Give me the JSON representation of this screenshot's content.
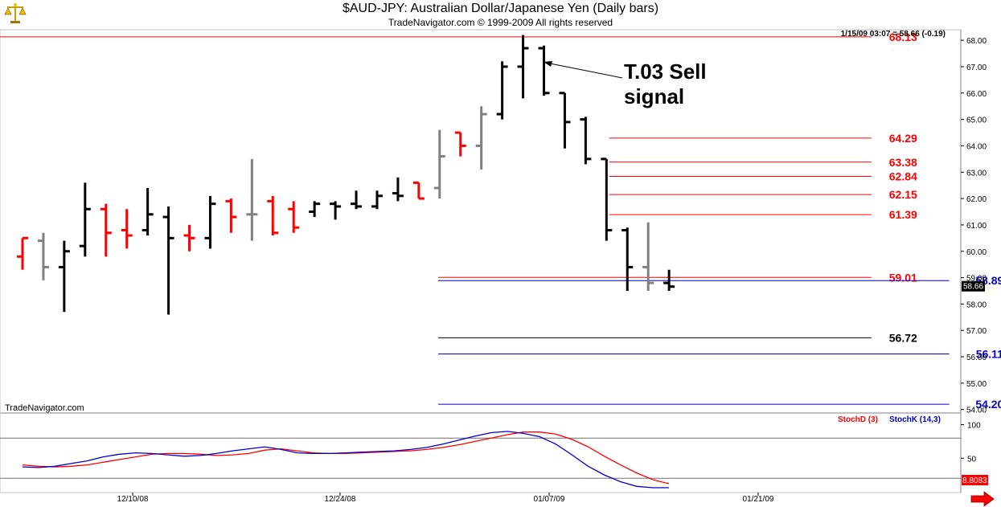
{
  "header": {
    "title": "$AUD-JPY:  Australian Dollar/Japanese Yen  (Daily bars)",
    "subtitle": "TradeNavigator.com © 1999-2009 All rights reserved",
    "quote_readout": "1/15/09 03:07 = 58.66 (-0.19)",
    "watermark": "TradeNavigator.com",
    "logo_icon": "gold-scale-logo-icon"
  },
  "colors": {
    "up_bar": "#000000",
    "down_bar": "#ff0000",
    "neutral_bar": "#808080",
    "level_red": "#ff0000",
    "level_blue": "#0000cc",
    "stoch_d": "#ff0000",
    "stoch_k": "#0000cc"
  },
  "annotation": {
    "line1": "T.03 Sell",
    "line2": "signal"
  },
  "chart_data": [
    {
      "type": "ohlc",
      "name": "price",
      "ylim": [
        53.9,
        68.4
      ],
      "y_ticks": [
        "68.00",
        "67.00",
        "66.00",
        "65.00",
        "64.00",
        "63.00",
        "62.00",
        "61.00",
        "60.00",
        "59.00",
        "58.00",
        "57.00",
        "56.00",
        "55.00",
        "54.00"
      ],
      "x_ticks": [
        "12/10/08",
        "12/24/08",
        "01/07/09",
        "01/21/09"
      ],
      "last_price": "58.66",
      "bars": [
        {
          "o": 59.8,
          "h": 60.5,
          "l": 59.3,
          "c": 60.5,
          "color": "red"
        },
        {
          "o": 60.4,
          "h": 60.7,
          "l": 58.9,
          "c": 59.4,
          "color": "gray"
        },
        {
          "o": 59.4,
          "h": 60.4,
          "l": 57.7,
          "c": 60.0,
          "color": "black"
        },
        {
          "o": 60.2,
          "h": 62.6,
          "l": 59.8,
          "c": 61.6,
          "color": "black"
        },
        {
          "o": 61.6,
          "h": 61.8,
          "l": 59.8,
          "c": 60.7,
          "color": "red"
        },
        {
          "o": 60.8,
          "h": 61.6,
          "l": 60.1,
          "c": 60.6,
          "color": "red"
        },
        {
          "o": 60.8,
          "h": 62.4,
          "l": 60.6,
          "c": 61.4,
          "color": "black"
        },
        {
          "o": 61.3,
          "h": 61.7,
          "l": 57.6,
          "c": 60.5,
          "color": "black"
        },
        {
          "o": 60.6,
          "h": 61.0,
          "l": 60.0,
          "c": 60.5,
          "color": "red"
        },
        {
          "o": 60.5,
          "h": 62.1,
          "l": 60.1,
          "c": 61.8,
          "color": "black"
        },
        {
          "o": 61.9,
          "h": 62.0,
          "l": 60.7,
          "c": 61.3,
          "color": "red"
        },
        {
          "o": 61.4,
          "h": 63.5,
          "l": 60.4,
          "c": 61.4,
          "color": "gray"
        },
        {
          "o": 61.9,
          "h": 62.1,
          "l": 60.6,
          "c": 60.7,
          "color": "red"
        },
        {
          "o": 61.6,
          "h": 61.9,
          "l": 60.7,
          "c": 60.9,
          "color": "red"
        },
        {
          "o": 61.5,
          "h": 61.9,
          "l": 61.3,
          "c": 61.8,
          "color": "black"
        },
        {
          "o": 61.8,
          "h": 61.9,
          "l": 61.2,
          "c": 61.7,
          "color": "black"
        },
        {
          "o": 61.8,
          "h": 62.3,
          "l": 61.6,
          "c": 61.7,
          "color": "black"
        },
        {
          "o": 61.7,
          "h": 62.3,
          "l": 61.6,
          "c": 62.1,
          "color": "black"
        },
        {
          "o": 62.2,
          "h": 62.8,
          "l": 61.9,
          "c": 62.1,
          "color": "black"
        },
        {
          "o": 62.6,
          "h": 62.6,
          "l": 62.0,
          "c": 62.0,
          "color": "red"
        },
        {
          "o": 62.4,
          "h": 64.6,
          "l": 62.0,
          "c": 63.6,
          "color": "gray"
        },
        {
          "o": 64.5,
          "h": 64.5,
          "l": 63.6,
          "c": 64.0,
          "color": "red"
        },
        {
          "o": 64.0,
          "h": 65.5,
          "l": 63.1,
          "c": 65.2,
          "color": "gray"
        },
        {
          "o": 65.2,
          "h": 67.2,
          "l": 65.0,
          "c": 67.0,
          "color": "black"
        },
        {
          "o": 67.0,
          "h": 68.2,
          "l": 65.8,
          "c": 67.7,
          "color": "black"
        },
        {
          "o": 67.7,
          "h": 67.8,
          "l": 65.9,
          "c": 66.0,
          "color": "black"
        },
        {
          "o": 66.0,
          "h": 66.0,
          "l": 63.9,
          "c": 64.9,
          "color": "black"
        },
        {
          "o": 65.0,
          "h": 65.1,
          "l": 63.3,
          "c": 63.5,
          "color": "black"
        },
        {
          "o": 63.5,
          "h": 63.5,
          "l": 60.4,
          "c": 60.8,
          "color": "black"
        },
        {
          "o": 60.8,
          "h": 60.9,
          "l": 58.5,
          "c": 59.4,
          "color": "black"
        },
        {
          "o": 59.4,
          "h": 61.1,
          "l": 58.5,
          "c": 58.8,
          "color": "gray"
        },
        {
          "o": 58.8,
          "h": 59.3,
          "l": 58.5,
          "c": 58.66,
          "color": "black"
        }
      ],
      "levels": [
        {
          "value": 68.13,
          "label": "68.13",
          "color": "red",
          "x_from": 0,
          "x_to": 0.907,
          "label_at": 0.94
        },
        {
          "value": 64.29,
          "label": "64.29",
          "color": "red",
          "x_from": 0.634,
          "x_to": 0.907,
          "label_at": 0.94
        },
        {
          "value": 63.38,
          "label": "63.38",
          "color": "red",
          "x_from": 0.634,
          "x_to": 0.907,
          "label_at": 0.94
        },
        {
          "value": 62.84,
          "label": "62.84",
          "color": "red",
          "x_from": 0.634,
          "x_to": 0.907,
          "label_at": 0.94
        },
        {
          "value": 62.15,
          "label": "62.15",
          "color": "red",
          "x_from": 0.634,
          "x_to": 0.907,
          "label_at": 0.94
        },
        {
          "value": 61.39,
          "label": "61.39",
          "color": "red",
          "x_from": 0.634,
          "x_to": 0.907,
          "label_at": 0.94
        },
        {
          "value": 59.01,
          "label": "59.01",
          "color": "red",
          "x_from": 0.456,
          "x_to": 0.907,
          "label_at": 0.94
        },
        {
          "value": 58.89,
          "label": "58.89",
          "color": "blue",
          "x_from": 0.456,
          "x_to": 0.988,
          "label_at": 1.03
        },
        {
          "value": 56.72,
          "label": "56.72",
          "color": "black",
          "x_from": 0.456,
          "x_to": 0.907,
          "label_at": 0.94
        },
        {
          "value": 56.11,
          "label": "56.11",
          "color": "blue",
          "x_from": 0.456,
          "x_to": 0.988,
          "label_at": 1.03
        },
        {
          "value": 54.2,
          "label": "54.20",
          "color": "blue",
          "x_from": 0.456,
          "x_to": 0.988,
          "label_at": 1.03
        }
      ]
    },
    {
      "type": "line",
      "name": "stochastic",
      "ylim": [
        0,
        115
      ],
      "y_ticks": [
        "100",
        "50"
      ],
      "ref_lines": [
        80,
        20
      ],
      "last_value": "8.8083",
      "legend": [
        "StochD (3)",
        "StochK (14,3)"
      ],
      "series": [
        {
          "name": "StochD (3)",
          "color": "red",
          "values": [
            40,
            38,
            37,
            38,
            40,
            44,
            48,
            52,
            56,
            57,
            57,
            56,
            54,
            55,
            57,
            62,
            64,
            61,
            58,
            57,
            57,
            58,
            59,
            60,
            61,
            63,
            66,
            70,
            75,
            80,
            85,
            89,
            89,
            86,
            78,
            67,
            53,
            40,
            28,
            18,
            12
          ]
        },
        {
          "name": "StochK (14,3)",
          "color": "blue",
          "values": [
            37,
            36,
            38,
            42,
            46,
            52,
            56,
            58,
            57,
            55,
            53,
            54,
            57,
            61,
            64,
            67,
            63,
            58,
            57,
            57,
            58,
            59,
            60,
            61,
            63,
            66,
            71,
            77,
            83,
            88,
            90,
            87,
            82,
            71,
            55,
            38,
            25,
            15,
            8,
            6,
            6
          ]
        }
      ]
    }
  ]
}
